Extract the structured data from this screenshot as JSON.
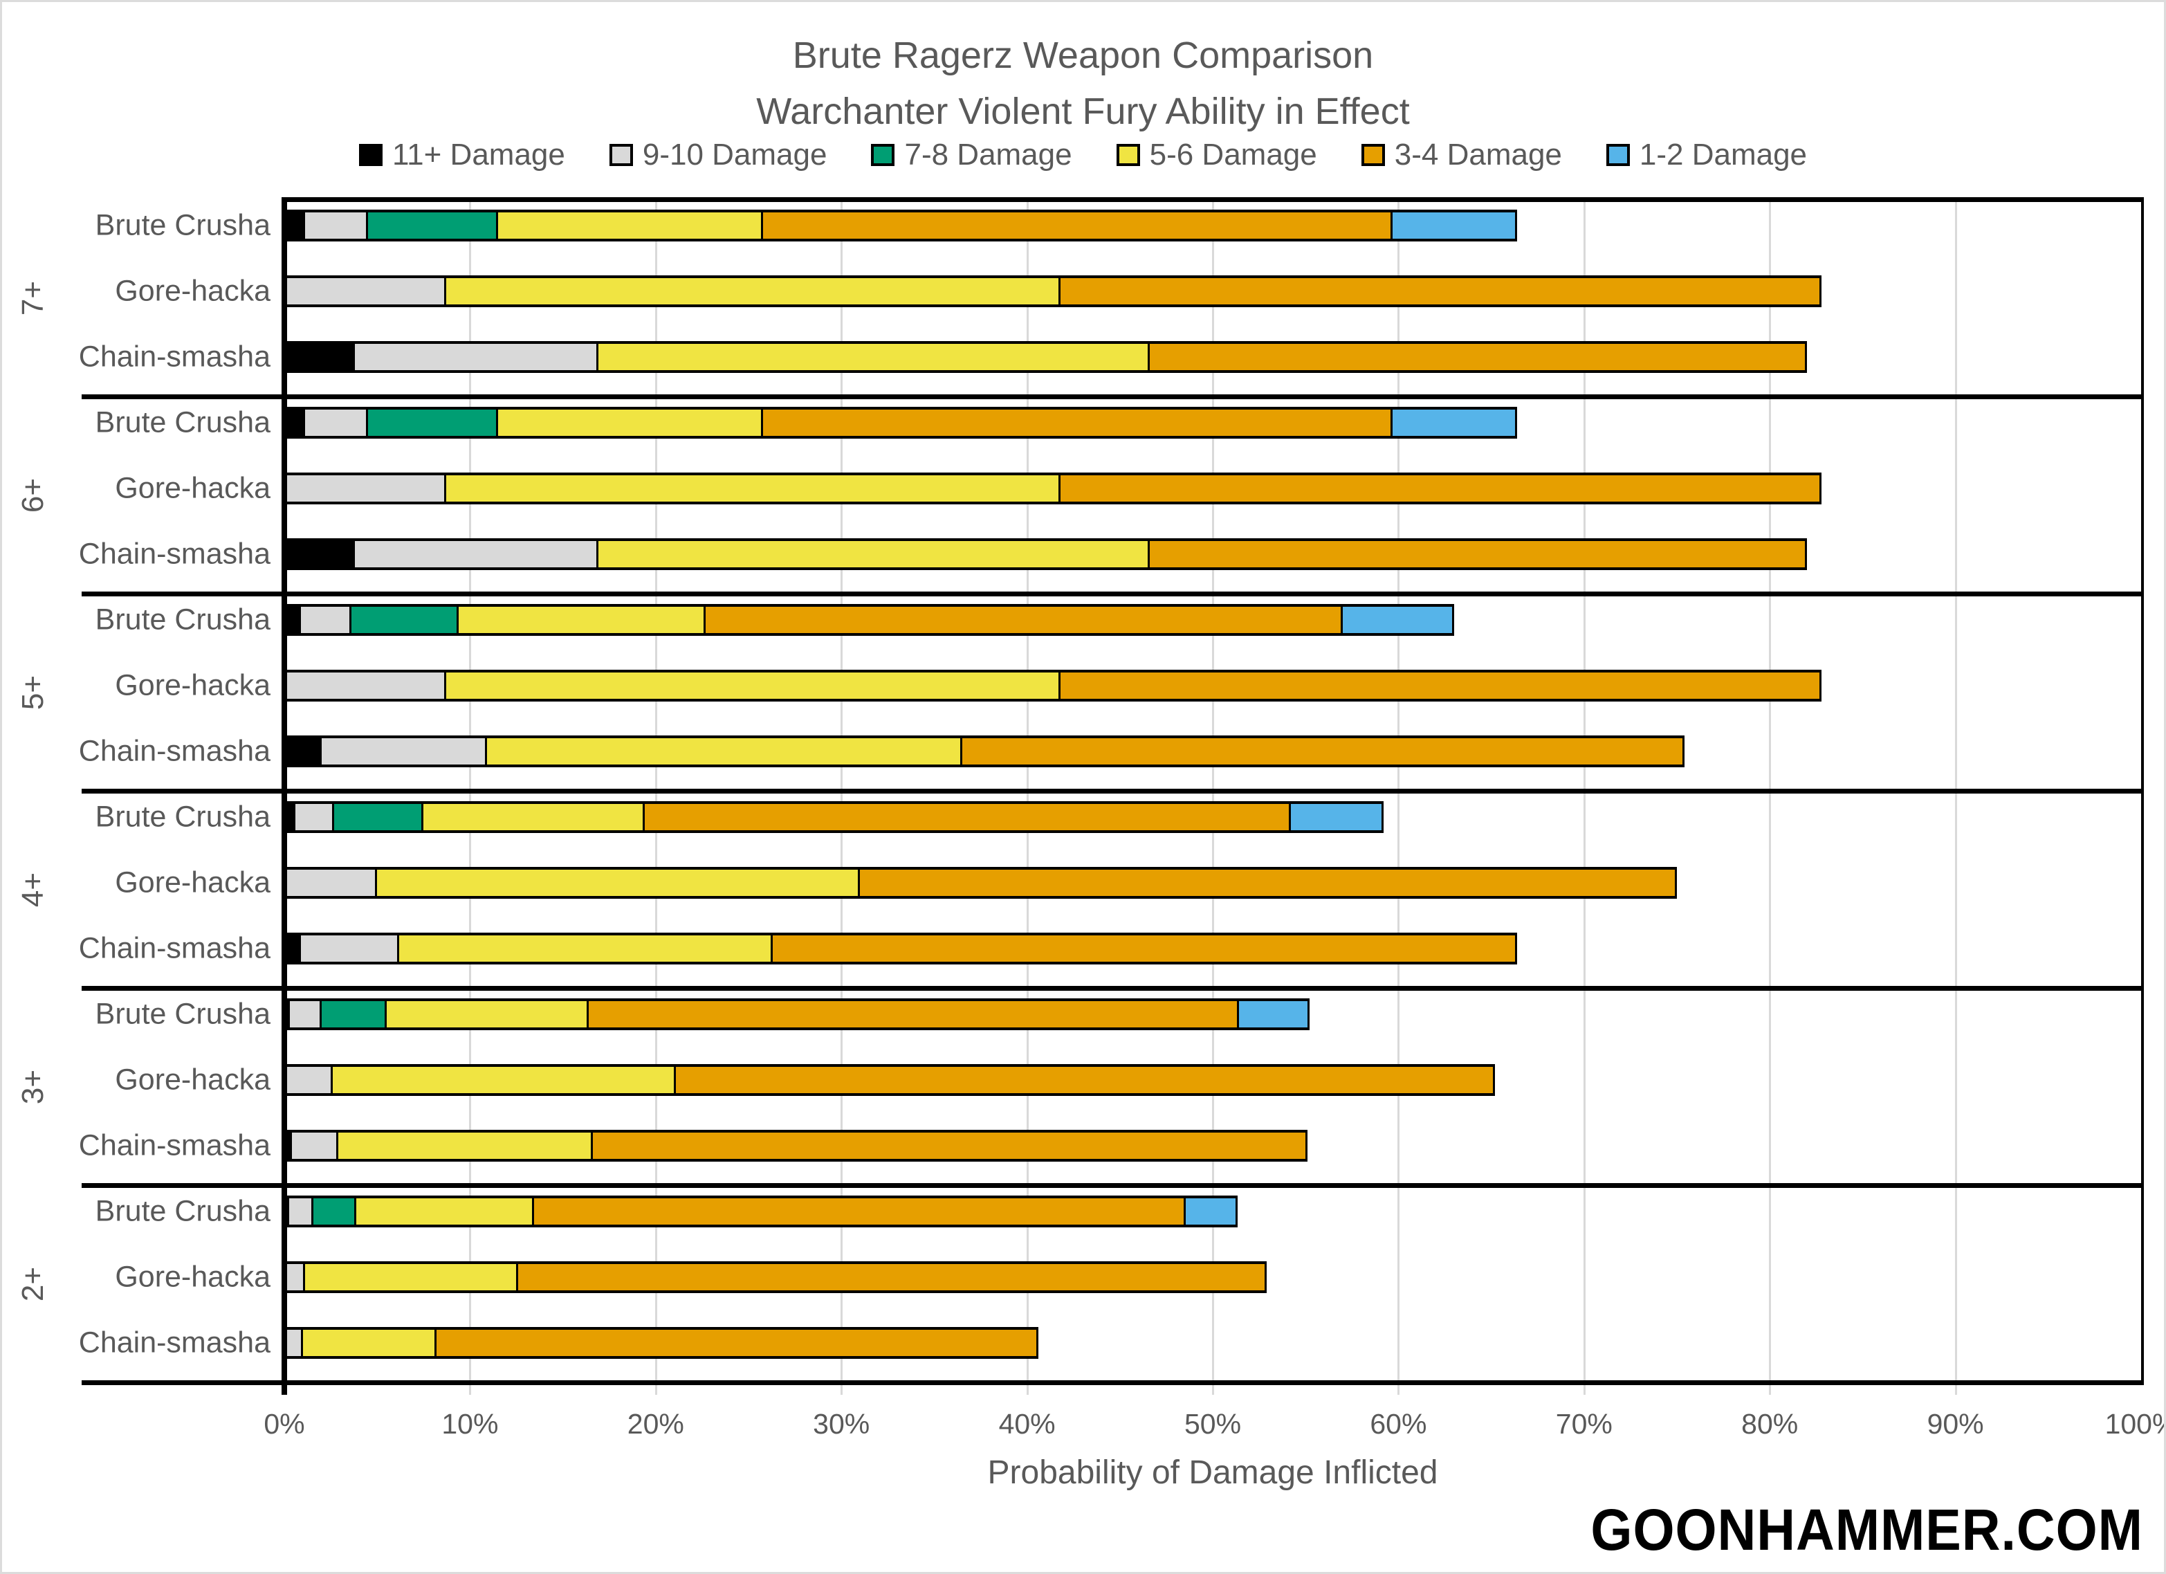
{
  "chart_data": {
    "type": "bar",
    "orientation": "horizontal-stacked",
    "title": "Brute Ragerz Weapon Comparison",
    "subtitle": "Warchanter Violent Fury Ability in Effect",
    "xlabel": "Probability of Damage Inflicted",
    "xlim": [
      0,
      100
    ],
    "x_ticks": [
      "0%",
      "10%",
      "20%",
      "30%",
      "40%",
      "50%",
      "60%",
      "70%",
      "80%",
      "90%",
      "100%"
    ],
    "grid": "vertical-light-gray",
    "legend_position": "top-center",
    "legend": [
      {
        "label": "11+ Damage",
        "color": "#000000"
      },
      {
        "label": "9-10 Damage",
        "color": "#D9D9D9"
      },
      {
        "label": "7-8 Damage",
        "color": "#009E73"
      },
      {
        "label": "5-6 Damage",
        "color": "#F0E442"
      },
      {
        "label": "3-4 Damage",
        "color": "#E69F00"
      },
      {
        "label": "1-2 Damage",
        "color": "#56B4E9"
      }
    ],
    "series_order_note": "values per bar are percent widths in legend order: 11+, 9-10, 7-8, 5-6, 3-4, 1-2",
    "groups": [
      {
        "label": "7+",
        "bars": [
          {
            "label": "Brute Crusha",
            "values": [
              1.1,
              3.4,
              7.0,
              14.3,
              33.9,
              6.7
            ]
          },
          {
            "label": "Gore-hacka",
            "values": [
              0,
              8.7,
              0,
              33.1,
              41.0,
              0
            ]
          },
          {
            "label": "Chain-smasha",
            "values": [
              3.8,
              13.1,
              0,
              29.7,
              35.4,
              0
            ]
          }
        ]
      },
      {
        "label": "6+",
        "bars": [
          {
            "label": "Brute Crusha",
            "values": [
              1.1,
              3.4,
              7.0,
              14.3,
              33.9,
              6.7
            ]
          },
          {
            "label": "Gore-hacka",
            "values": [
              0,
              8.7,
              0,
              33.1,
              41.0,
              0
            ]
          },
          {
            "label": "Chain-smasha",
            "values": [
              3.8,
              13.1,
              0,
              29.7,
              35.4,
              0
            ]
          }
        ]
      },
      {
        "label": "5+",
        "bars": [
          {
            "label": "Brute Crusha",
            "values": [
              0.9,
              2.7,
              5.8,
              13.3,
              34.3,
              6.0
            ]
          },
          {
            "label": "Gore-hacka",
            "values": [
              0,
              8.7,
              0,
              33.1,
              41.0,
              0
            ]
          },
          {
            "label": "Chain-smasha",
            "values": [
              2.0,
              8.9,
              0,
              25.6,
              38.9,
              0
            ]
          }
        ]
      },
      {
        "label": "4+",
        "bars": [
          {
            "label": "Brute Crusha",
            "values": [
              0.6,
              2.1,
              4.8,
              11.9,
              34.8,
              5.0
            ]
          },
          {
            "label": "Gore-hacka",
            "values": [
              0,
              5.0,
              0,
              26.0,
              44.0,
              0
            ]
          },
          {
            "label": "Chain-smasha",
            "values": [
              0.9,
              5.3,
              0,
              20.1,
              40.1,
              0
            ]
          }
        ]
      },
      {
        "label": "3+",
        "bars": [
          {
            "label": "Brute Crusha",
            "values": [
              0.3,
              1.7,
              3.5,
              10.9,
              35.0,
              3.8
            ]
          },
          {
            "label": "Gore-hacka",
            "values": [
              0,
              2.6,
              0,
              18.5,
              44.1,
              0
            ]
          },
          {
            "label": "Chain-smasha",
            "values": [
              0.4,
              2.5,
              0,
              13.7,
              38.5,
              0
            ]
          }
        ]
      },
      {
        "label": "2+",
        "bars": [
          {
            "label": "Brute Crusha",
            "values": [
              0.1,
              1.3,
              2.3,
              9.6,
              35.1,
              2.8
            ]
          },
          {
            "label": "Gore-hacka",
            "values": [
              0,
              1.1,
              0,
              11.5,
              40.3,
              0
            ]
          },
          {
            "label": "Chain-smasha",
            "values": [
              0,
              1.0,
              0,
              7.2,
              32.4,
              0
            ]
          }
        ]
      }
    ],
    "watermark": "GOONHAMMER.COM"
  }
}
